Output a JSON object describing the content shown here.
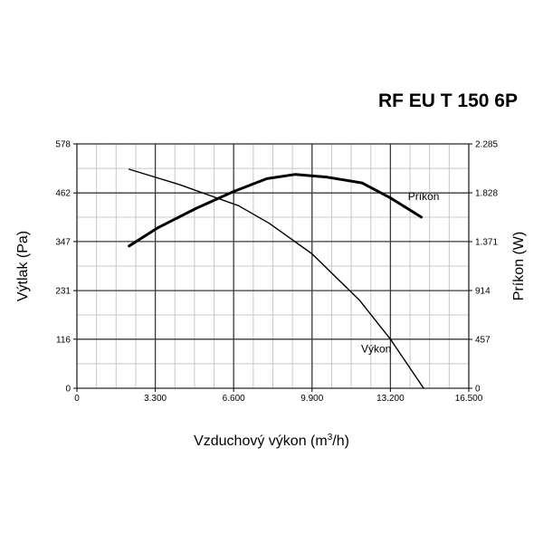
{
  "chart_data": {
    "type": "line",
    "title": "RF EU T 150 6P",
    "xlabel": "Vzduchový výkon (m",
    "xlabel_sup": "3",
    "xlabel_tail": "/h)",
    "ylabel_left": "Výtlak (Pa)",
    "ylabel_right": "Príkon (W)",
    "xlim": [
      0,
      16500
    ],
    "ylim_left": [
      0,
      578
    ],
    "ylim_right": [
      0,
      2285
    ],
    "x_ticks": [
      {
        "value": 0,
        "label": "0"
      },
      {
        "value": 3300,
        "label": "3.300"
      },
      {
        "value": 6600,
        "label": "6.600"
      },
      {
        "value": 9900,
        "label": "9.900"
      },
      {
        "value": 13200,
        "label": "13.200"
      },
      {
        "value": 16500,
        "label": "16.500"
      }
    ],
    "y_left_ticks": [
      {
        "value": 0,
        "label": "0"
      },
      {
        "value": 116,
        "label": "116"
      },
      {
        "value": 231,
        "label": "231"
      },
      {
        "value": 347,
        "label": "347"
      },
      {
        "value": 462,
        "label": "462"
      },
      {
        "value": 578,
        "label": "578"
      }
    ],
    "y_right_ticks": [
      {
        "value": 0,
        "label": "0"
      },
      {
        "value": 457,
        "label": "457"
      },
      {
        "value": 914,
        "label": "914"
      },
      {
        "value": 1371,
        "label": "1.371"
      },
      {
        "value": 1828,
        "label": "1.828"
      },
      {
        "value": 2285,
        "label": "2.285"
      }
    ],
    "grid": true,
    "series": [
      {
        "name": "Výkon",
        "axis": "left",
        "stroke": "#000000",
        "x": [
          2200,
          4300,
          6800,
          8100,
          9900,
          11900,
          13200,
          14600
        ],
        "y": [
          518,
          482,
          432,
          390,
          318,
          208,
          116,
          0
        ]
      },
      {
        "name": "Príkon",
        "axis": "right",
        "stroke": "#000000",
        "x": [
          2200,
          3400,
          5000,
          6600,
          8000,
          9200,
          10500,
          12000,
          13200,
          14500
        ],
        "y": [
          1330,
          1500,
          1680,
          1840,
          1960,
          2000,
          1975,
          1920,
          1780,
          1600
        ]
      }
    ]
  }
}
